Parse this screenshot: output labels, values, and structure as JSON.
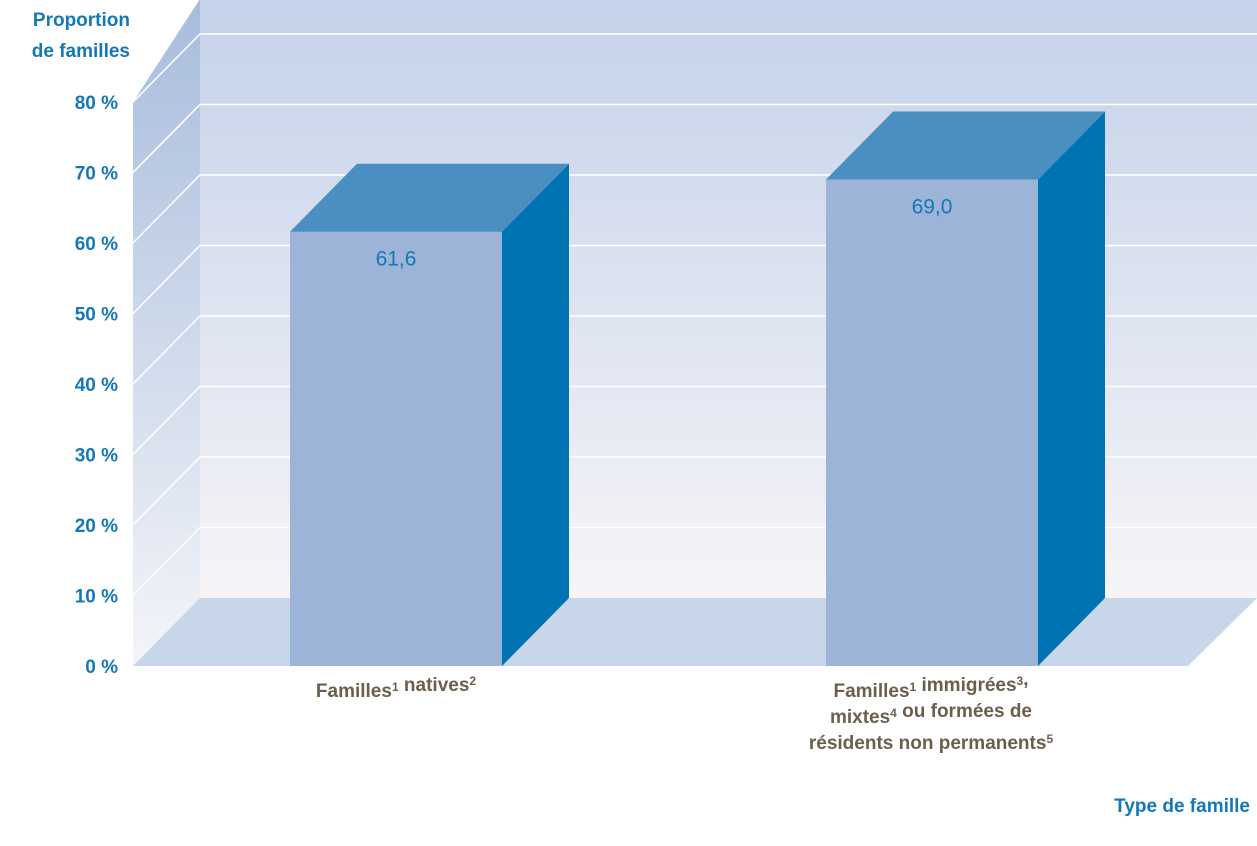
{
  "chart_data": {
    "type": "bar",
    "ylabel_lines": [
      "Proportion",
      "de familles"
    ],
    "xlabel": "Type de famille",
    "yticks": [
      "0 %",
      "10 %",
      "20 %",
      "30 %",
      "40 %",
      "50 %",
      "60 %",
      "70 %",
      "80 %"
    ],
    "ylim": [
      0,
      80
    ],
    "grid": true,
    "categories": [
      {
        "lines": [
          [
            [
              "Familles",
              ""
            ],
            [
              "1",
              "sup"
            ],
            [
              " natives",
              ""
            ],
            [
              "2",
              "sup"
            ]
          ]
        ]
      },
      {
        "lines": [
          [
            [
              "Familles",
              ""
            ],
            [
              "1",
              "sup"
            ],
            [
              " immigrées",
              ""
            ],
            [
              "3",
              "sup"
            ],
            [
              ",",
              ""
            ]
          ],
          [
            [
              "mixtes",
              ""
            ],
            [
              "4",
              "sup"
            ],
            [
              " ou formées de",
              ""
            ]
          ],
          [
            [
              "résidents non permanents",
              ""
            ],
            [
              "5",
              "sup"
            ]
          ]
        ]
      }
    ],
    "values": [
      61.6,
      69.0
    ],
    "value_labels": [
      "61,6",
      "69,0"
    ],
    "colors": {
      "bar_front": "#9cb4d8",
      "bar_top": "#4b8ec2",
      "bar_side": "#0073b2",
      "floor": "#c8d6ea",
      "axis_text": "#1478b8",
      "category_text": "#6a5f4a"
    }
  }
}
